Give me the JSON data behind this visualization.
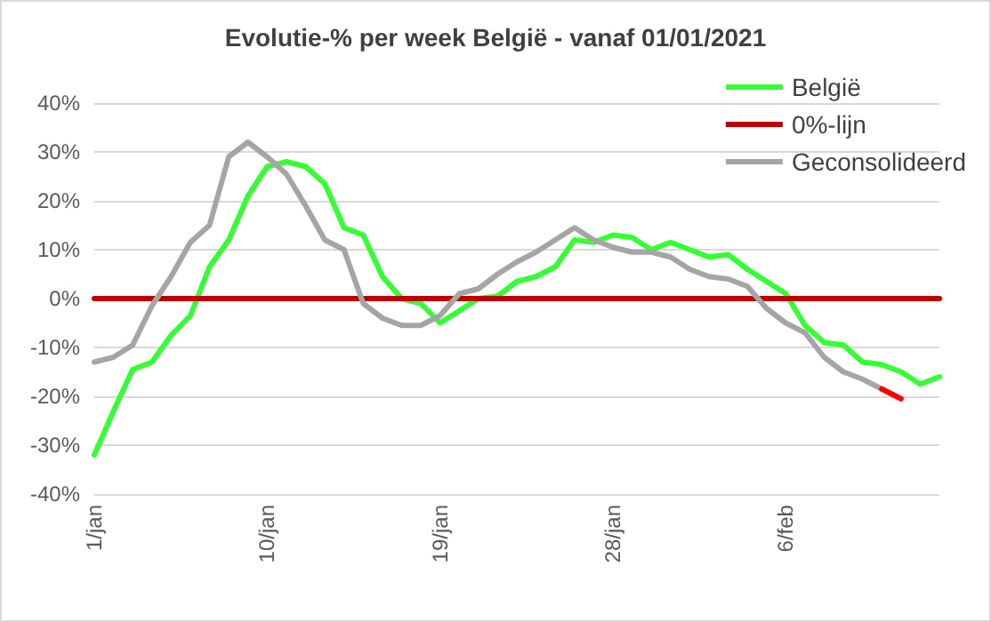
{
  "chart_data": {
    "type": "line",
    "title": "Evolutie-% per week België - vanaf 01/01/2021",
    "categories": [
      "1/jan",
      null,
      null,
      null,
      null,
      null,
      null,
      null,
      null,
      "10/jan",
      null,
      null,
      null,
      null,
      null,
      null,
      null,
      null,
      "19/jan",
      null,
      null,
      null,
      null,
      null,
      null,
      null,
      null,
      "28/jan",
      null,
      null,
      null,
      null,
      null,
      null,
      null,
      null,
      "6/feb",
      null,
      null,
      null,
      null,
      null,
      null,
      null,
      null
    ],
    "series": [
      {
        "name": "België",
        "color": "#33ff33",
        "values": [
          -32,
          -23,
          -14.5,
          -13,
          -7.5,
          -3.5,
          6.5,
          12,
          21,
          27,
          28,
          27,
          23.5,
          14.5,
          13,
          4.5,
          0,
          -1,
          -5,
          -2.5,
          0,
          0.5,
          3.5,
          4.5,
          6.5,
          12,
          11.5,
          13,
          12.5,
          10,
          11.5,
          10,
          8.5,
          9,
          6,
          3.5,
          1,
          -5.5,
          -9,
          -9.5,
          -13,
          -13.5,
          -15,
          -17.5,
          -16
        ]
      },
      {
        "name": "0%-lijn",
        "color": "#c00000",
        "values": [
          0,
          0,
          0,
          0,
          0,
          0,
          0,
          0,
          0,
          0,
          0,
          0,
          0,
          0,
          0,
          0,
          0,
          0,
          0,
          0,
          0,
          0,
          0,
          0,
          0,
          0,
          0,
          0,
          0,
          0,
          0,
          0,
          0,
          0,
          0,
          0,
          0,
          0,
          0,
          0,
          0,
          0,
          0,
          0,
          0
        ]
      },
      {
        "name": "Geconsolideerd",
        "color": "#a5a5a5",
        "values": [
          -13,
          -12,
          -9.5,
          -1.5,
          4.5,
          11.5,
          15,
          29,
          32,
          29,
          25.5,
          19,
          12,
          10,
          -1,
          -4,
          -5.5,
          -5.5,
          -3.5,
          1,
          2,
          5,
          7.5,
          9.5,
          12,
          14.5,
          12,
          10.5,
          9.5,
          9.5,
          8.5,
          6,
          4.5,
          4,
          2.5,
          -2,
          -5,
          -7,
          -12,
          -15,
          -16.5,
          -18.5,
          null,
          null,
          null
        ]
      },
      {
        "color": "#ff0000",
        "values": [
          null,
          null,
          null,
          null,
          null,
          null,
          null,
          null,
          null,
          null,
          null,
          null,
          null,
          null,
          null,
          null,
          null,
          null,
          null,
          null,
          null,
          null,
          null,
          null,
          null,
          null,
          null,
          null,
          null,
          null,
          null,
          null,
          null,
          null,
          null,
          null,
          null,
          null,
          null,
          null,
          null,
          -18.5,
          -20.5,
          null,
          null
        ]
      }
    ],
    "ylim": [
      -40,
      40
    ],
    "yticks": [
      {
        "value": -40,
        "label": "-40%"
      },
      {
        "value": -30,
        "label": "-30%"
      },
      {
        "value": -20,
        "label": "-20%"
      },
      {
        "value": -10,
        "label": "-10%"
      },
      {
        "value": 0,
        "label": "0%"
      },
      {
        "value": 10,
        "label": "10%"
      },
      {
        "value": 20,
        "label": "20%"
      },
      {
        "value": 30,
        "label": "30%"
      },
      {
        "value": 40,
        "label": "40%"
      }
    ],
    "grid": "y",
    "legend": "top right",
    "marker": "none",
    "line_style": "solid"
  }
}
